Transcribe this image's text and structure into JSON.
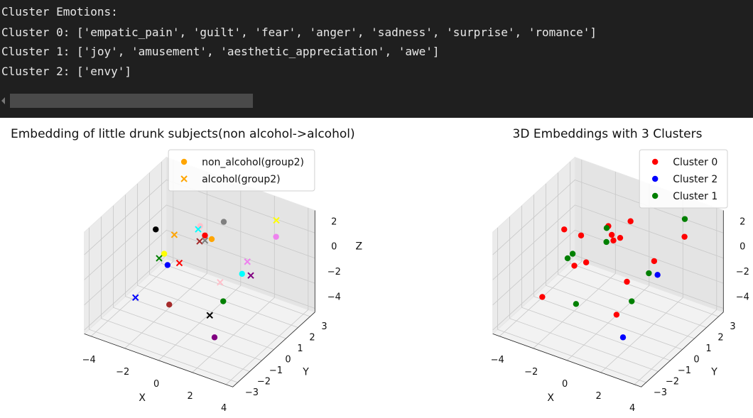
{
  "console": {
    "lines": [
      "Cluster Emotions:",
      "Cluster 0: ['empatic_pain', 'guilt', 'fear', 'anger', 'sadness', 'surprise', 'romance']",
      "Cluster 1: ['joy', 'amusement', 'aesthetic_appreciation', 'awe']",
      "Cluster 2: ['envy']"
    ]
  },
  "chart_data": [
    {
      "type": "scatter3d",
      "title": "Embedding of little drunk subjects(non alcohol->alcohol)",
      "xlabel": "X",
      "ylabel": "Y",
      "zlabel": "Z",
      "xlim": [
        -4.4,
        4.4
      ],
      "ylim": [
        -3.4,
        3.4
      ],
      "zlim": [
        -4.3,
        3.8
      ],
      "xticks": [
        {
          "value": -4,
          "label": "−4"
        },
        {
          "value": -2,
          "label": "−2"
        },
        0,
        2,
        4
      ],
      "yticks": [
        {
          "value": -3,
          "label": "−3"
        },
        {
          "value": -2,
          "label": "−2"
        },
        {
          "value": -1,
          "label": "−1"
        },
        0,
        1,
        2,
        3
      ],
      "zticks": [
        {
          "value": -4,
          "label": "−4"
        },
        {
          "value": -2,
          "label": "−2"
        },
        0,
        2
      ],
      "legend": "upper center",
      "grid": true,
      "series": [
        {
          "name": "non_alcohol(group2)",
          "marker": "o",
          "color": "orange",
          "colors": [
            "black",
            "pink",
            "red",
            "orange",
            "gray",
            "yellow",
            "blue",
            "violet",
            "cyan",
            "green",
            "brown",
            "purple"
          ],
          "x": [
            -2.6,
            -1.4,
            -0.4,
            0,
            0,
            -2.1,
            -1.9,
            3.1,
            1.8,
            1.4,
            -1.8,
            1.6
          ],
          "y": [
            0,
            2,
            1,
            1,
            2,
            0,
            0,
            2,
            1,
            0,
            0,
            -1
          ],
          "z": [
            1.9,
            1.0,
            1.6,
            1.5,
            2.0,
            0.2,
            -0.6,
            2.3,
            -0.4,
            -1.9,
            -3.7,
            -3.8
          ]
        },
        {
          "name": "alcohol(group2)",
          "marker": "x",
          "color": "orange",
          "colors": [
            "orange",
            "cyan",
            "brown",
            "gray",
            "green",
            "red",
            "yellow",
            "violet",
            "purple",
            "pink",
            "blue",
            "black"
          ],
          "x": [
            -1.5,
            -0.8,
            0,
            -0.4,
            -2.4,
            -1.2,
            2.4,
            1.4,
            1.6,
            0.5,
            -3.8,
            0.6
          ],
          "y": [
            0,
            1,
            0,
            1,
            0,
            0,
            3,
            2,
            2,
            1,
            0,
            0
          ],
          "z": [
            2.0,
            1.9,
            2.2,
            1.2,
            -0.3,
            -0.1,
            2.4,
            -0.5,
            -1.5,
            -1.7,
            -4.1,
            -3.4
          ]
        }
      ]
    },
    {
      "type": "scatter3d",
      "title": "3D Embeddings with 3 Clusters",
      "xlabel": "X",
      "ylabel": "Y",
      "xlim": [
        -4.4,
        4.4
      ],
      "ylim": [
        -3.4,
        3.4
      ],
      "zlim": [
        -4.3,
        3.8
      ],
      "xticks": [
        {
          "value": -4,
          "label": "−4"
        },
        {
          "value": -2,
          "label": "−2"
        },
        0,
        2,
        4
      ],
      "yticks": [
        {
          "value": -3,
          "label": "−3"
        },
        {
          "value": -2,
          "label": "−2"
        },
        {
          "value": -1,
          "label": "−1"
        },
        0,
        1,
        2,
        3
      ],
      "zticks": [
        {
          "value": -4,
          "label": "−4"
        },
        {
          "value": -2,
          "label": "−2"
        },
        0,
        2
      ],
      "legend": "upper right",
      "grid": true,
      "series": [
        {
          "name": "Cluster 0",
          "marker": "o",
          "color": "red",
          "x": [
            -2.6,
            -1.6,
            -0.7,
            -0.5,
            -0.4,
            0,
            -0.1,
            3.1,
            1.3,
            -1.3,
            -2.0,
            0.4,
            0.5,
            -3.9
          ],
          "y": [
            0,
            0,
            1,
            1,
            1,
            1,
            2,
            2,
            2,
            0,
            0,
            1,
            0,
            0
          ],
          "z": [
            1.9,
            1.9,
            2.2,
            1.6,
            1.2,
            1.6,
            2.0,
            2.3,
            -0.5,
            -0.1,
            -0.7,
            -1.7,
            -3.4,
            -4.1
          ]
        },
        {
          "name": "Cluster 2",
          "marker": "o",
          "color": "blue",
          "x": [
            1.5,
            1.6
          ],
          "y": [
            2,
            -1
          ],
          "z": [
            -1.5,
            -3.8
          ]
        },
        {
          "name": "Cluster 1",
          "marker": "o",
          "color": "green",
          "x": [
            -0.8,
            -0.1,
            -2.1,
            -2.4,
            2.4,
            1.7,
            1.4,
            -1.9
          ],
          "y": [
            1,
            0,
            0,
            0,
            3,
            1,
            0,
            0
          ],
          "z": [
            2.0,
            2.1,
            0.2,
            -0.3,
            2.5,
            -0.4,
            -1.9,
            -3.7
          ]
        }
      ]
    }
  ]
}
